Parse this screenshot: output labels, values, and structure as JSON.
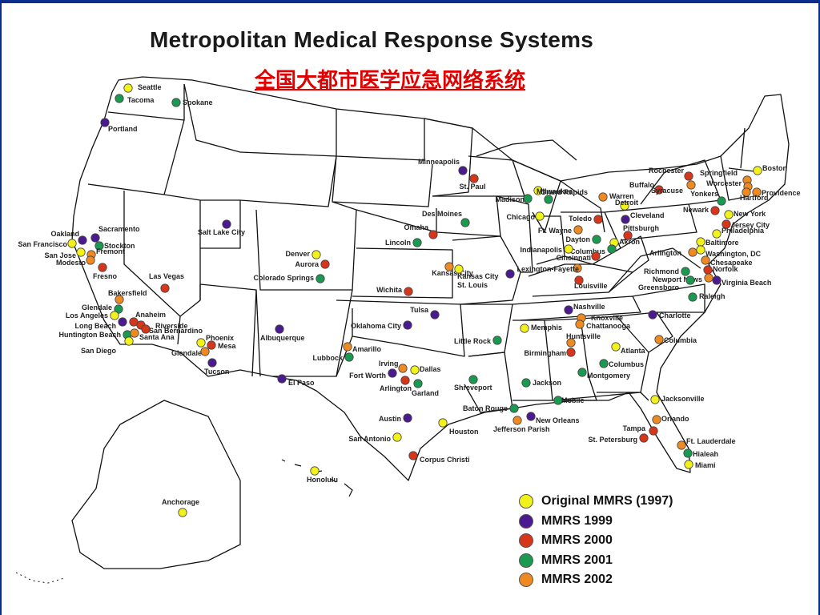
{
  "map": {
    "title": "Metropolitan Medical Response Systems",
    "subtitle": "全国大都市医学应急网络系统",
    "colors": {
      "original": "#f2f21a",
      "1999": "#4b1a8f",
      "2000": "#d6361a",
      "2001": "#1a9a50",
      "2002": "#ef8a22"
    },
    "legend": [
      {
        "key": "original",
        "label": "Original MMRS (1997)"
      },
      {
        "key": "1999",
        "label": "MMRS 1999"
      },
      {
        "key": "2000",
        "label": "MMRS 2000"
      },
      {
        "key": "2001",
        "label": "MMRS 2001"
      },
      {
        "key": "2002",
        "label": "MMRS 2002"
      }
    ],
    "cities": [
      {
        "name": "Seattle",
        "cat": "original"
      },
      {
        "name": "Tacoma",
        "cat": "2001"
      },
      {
        "name": "Spokane",
        "cat": "2001"
      },
      {
        "name": "Portland",
        "cat": "1999"
      },
      {
        "name": "Oakland",
        "cat": "1999"
      },
      {
        "name": "Sacramento",
        "cat": "1999"
      },
      {
        "name": "San Francisco",
        "cat": "original"
      },
      {
        "name": "Stockton",
        "cat": "2001"
      },
      {
        "name": "San Jose",
        "cat": "original"
      },
      {
        "name": "Fremont",
        "cat": "2002"
      },
      {
        "name": "Modesto",
        "cat": "2002"
      },
      {
        "name": "Fresno",
        "cat": "2000"
      },
      {
        "name": "Las Vegas",
        "cat": "2000"
      },
      {
        "name": "Bakersfield",
        "cat": "2002"
      },
      {
        "name": "Glendale",
        "cat": "2001"
      },
      {
        "name": "Los Angeles",
        "cat": "original"
      },
      {
        "name": "Anaheim",
        "cat": "2000"
      },
      {
        "name": "Riverside",
        "cat": "2000"
      },
      {
        "name": "Long Beach",
        "cat": "1999"
      },
      {
        "name": "San Bernardino",
        "cat": "2000"
      },
      {
        "name": "Huntington Beach",
        "cat": "2001"
      },
      {
        "name": "Santa Ana",
        "cat": "2002"
      },
      {
        "name": "San Diego",
        "cat": "original"
      },
      {
        "name": "Phoenix",
        "cat": "original"
      },
      {
        "name": "Mesa",
        "cat": "2000"
      },
      {
        "name": "Glendale",
        "cat": "2002"
      },
      {
        "name": "Tucson",
        "cat": "1999"
      },
      {
        "name": "Salt Lake City",
        "cat": "1999"
      },
      {
        "name": "Denver",
        "cat": "original"
      },
      {
        "name": "Aurora",
        "cat": "2000"
      },
      {
        "name": "Colorado Springs",
        "cat": "2001"
      },
      {
        "name": "Albuquerque",
        "cat": "1999"
      },
      {
        "name": "El Paso",
        "cat": "1999"
      },
      {
        "name": "Minneapolis",
        "cat": "1999"
      },
      {
        "name": "St. Paul",
        "cat": "2000"
      },
      {
        "name": "Des Moines",
        "cat": "2001"
      },
      {
        "name": "Omaha",
        "cat": "2000"
      },
      {
        "name": "Lincoln",
        "cat": "2001"
      },
      {
        "name": "Kansas City",
        "cat": "2002"
      },
      {
        "name": "Kansas City",
        "cat": "original"
      },
      {
        "name": "Wichita",
        "cat": "2000"
      },
      {
        "name": "St. Louis",
        "cat": "1999"
      },
      {
        "name": "Tulsa",
        "cat": "1999"
      },
      {
        "name": "Oklahoma City",
        "cat": "1999"
      },
      {
        "name": "Amarillo",
        "cat": "2002"
      },
      {
        "name": "Lubbock",
        "cat": "2001"
      },
      {
        "name": "Irving",
        "cat": "2002"
      },
      {
        "name": "Dallas",
        "cat": "original"
      },
      {
        "name": "Fort Worth",
        "cat": "1999"
      },
      {
        "name": "Arlington",
        "cat": "2000"
      },
      {
        "name": "Garland",
        "cat": "2001"
      },
      {
        "name": "Austin",
        "cat": "1999"
      },
      {
        "name": "San Antonio",
        "cat": "original"
      },
      {
        "name": "Houston",
        "cat": "original"
      },
      {
        "name": "Corpus Christi",
        "cat": "2000"
      },
      {
        "name": "Little Rock",
        "cat": "2001"
      },
      {
        "name": "Shreveport",
        "cat": "2001"
      },
      {
        "name": "Baton Rouge",
        "cat": "2001"
      },
      {
        "name": "New Orleans",
        "cat": "1999"
      },
      {
        "name": "Jefferson Parish",
        "cat": "2002"
      },
      {
        "name": "Jackson",
        "cat": "2001"
      },
      {
        "name": "Mobile",
        "cat": "2001"
      },
      {
        "name": "Memphis",
        "cat": "original"
      },
      {
        "name": "Nashville",
        "cat": "1999"
      },
      {
        "name": "Knoxville",
        "cat": "2002"
      },
      {
        "name": "Chattanooga",
        "cat": "2002"
      },
      {
        "name": "Huntsville",
        "cat": "2002"
      },
      {
        "name": "Birmingham",
        "cat": "2000"
      },
      {
        "name": "Atlanta",
        "cat": "original"
      },
      {
        "name": "Columbus",
        "cat": "2001"
      },
      {
        "name": "Montgomery",
        "cat": "2001"
      },
      {
        "name": "Charlotte",
        "cat": "1999"
      },
      {
        "name": "Columbia",
        "cat": "2002"
      },
      {
        "name": "Jacksonville",
        "cat": "original"
      },
      {
        "name": "Orlando",
        "cat": "2002"
      },
      {
        "name": "Tampa",
        "cat": "2000"
      },
      {
        "name": "St. Petersburg",
        "cat": "2000"
      },
      {
        "name": "Ft. Lauderdale",
        "cat": "2002"
      },
      {
        "name": "Hialeah",
        "cat": "2001"
      },
      {
        "name": "Miami",
        "cat": "original"
      },
      {
        "name": "Milwaukee",
        "cat": "original"
      },
      {
        "name": "Madison",
        "cat": "2001"
      },
      {
        "name": "Chicago",
        "cat": "original"
      },
      {
        "name": "Grand Rapids",
        "cat": "2001"
      },
      {
        "name": "Warren",
        "cat": "2002"
      },
      {
        "name": "Detroit",
        "cat": "original"
      },
      {
        "name": "Toledo",
        "cat": "2000"
      },
      {
        "name": "Cleveland",
        "cat": "1999"
      },
      {
        "name": "Ft. Wayne",
        "cat": "2002"
      },
      {
        "name": "Dayton",
        "cat": "2001"
      },
      {
        "name": "Akron",
        "cat": "original"
      },
      {
        "name": "Columbus",
        "cat": "2001"
      },
      {
        "name": "Pittsburgh",
        "cat": "2000"
      },
      {
        "name": "Indianapolis",
        "cat": "original"
      },
      {
        "name": "Cincinnati",
        "cat": "2000"
      },
      {
        "name": "Lexington-Fayette",
        "cat": "2002"
      },
      {
        "name": "Louisville",
        "cat": "2000"
      },
      {
        "name": "Buffalo",
        "cat": "2000"
      },
      {
        "name": "Rochester",
        "cat": "2000"
      },
      {
        "name": "Syracuse",
        "cat": "2002"
      },
      {
        "name": "Springfield",
        "cat": "2002"
      },
      {
        "name": "Worcester",
        "cat": "2002"
      },
      {
        "name": "Boston",
        "cat": "original"
      },
      {
        "name": "Providence",
        "cat": "2002"
      },
      {
        "name": "Hartford",
        "cat": "2002"
      },
      {
        "name": "Yonkers",
        "cat": "2001"
      },
      {
        "name": "Newark",
        "cat": "2000"
      },
      {
        "name": "New York",
        "cat": "original"
      },
      {
        "name": "Jersey City",
        "cat": "2000"
      },
      {
        "name": "Philadelphia",
        "cat": "original"
      },
      {
        "name": "Baltimore",
        "cat": "original"
      },
      {
        "name": "Washington, DC",
        "cat": "original"
      },
      {
        "name": "Arlington",
        "cat": "2002"
      },
      {
        "name": "Chesapeake",
        "cat": "2002"
      },
      {
        "name": "Norfolk",
        "cat": "2000"
      },
      {
        "name": "Virginia Beach",
        "cat": "1999"
      },
      {
        "name": "Newport News",
        "cat": "2002"
      },
      {
        "name": "Richmond",
        "cat": "2001"
      },
      {
        "name": "Greensboro",
        "cat": "2001"
      },
      {
        "name": "Raleigh",
        "cat": "2001"
      },
      {
        "name": "Anchorage",
        "cat": "original"
      },
      {
        "name": "Honolulu",
        "cat": "original"
      }
    ]
  }
}
